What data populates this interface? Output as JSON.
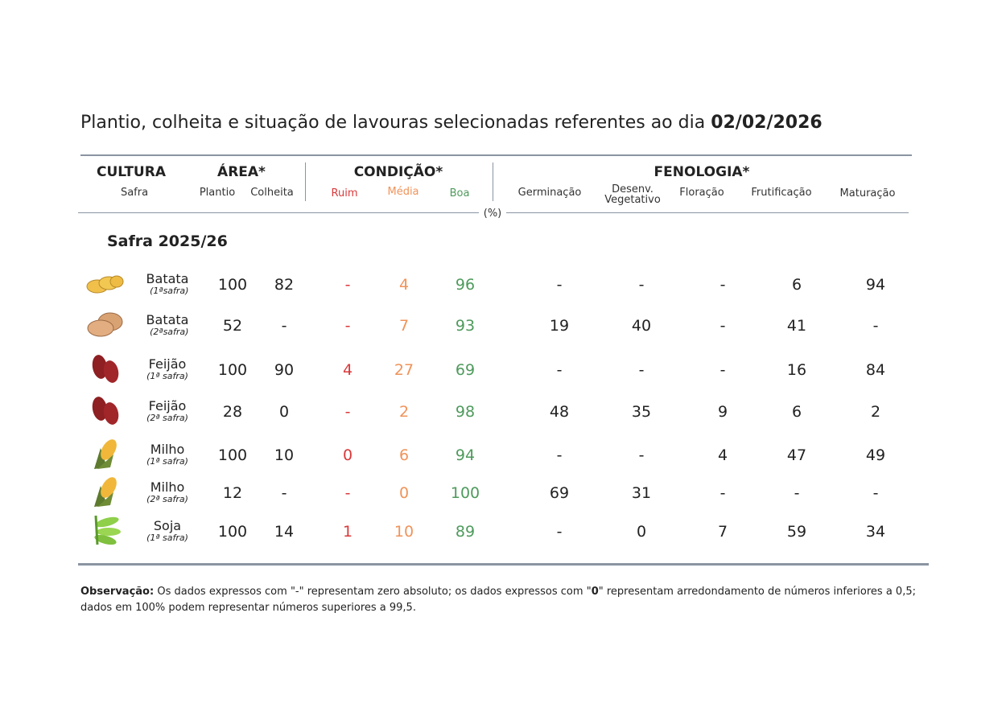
{
  "title": {
    "text": "Plantio, colheita e situação de lavouras selecionadas referentes ao dia ",
    "date": "02/02/2026"
  },
  "header": {
    "cultura": "CULTURA",
    "safra": "Safra",
    "area": "ÁREA*",
    "plantio": "Plantio",
    "colheita": "Colheita",
    "condicao": "CONDIÇÃO*",
    "ruim": "Ruim",
    "media": "Média",
    "boa": "Boa",
    "fenologia": "FENOLOGIA*",
    "germinacao": "Germinação",
    "desenv1": "Desenv.",
    "desenv2": "Vegetativo",
    "floracao": "Floração",
    "frutificacao": "Frutificação",
    "maturacao": "Maturação",
    "unit": "(%)"
  },
  "section": "Safra 2025/26",
  "colors": {
    "ruim": "#d9393b",
    "media": "#f0935a",
    "boa": "#4e9a5c"
  },
  "rows": [
    {
      "crop": "Batata",
      "safra": "(1ªsafra)",
      "icon": "potato-yellow-icon",
      "plantio": "100",
      "colheita": "82",
      "ruim": "-",
      "media": "4",
      "boa": "96",
      "germinacao": "-",
      "desenv": "-",
      "floracao": "-",
      "frutificacao": "6",
      "maturacao": "94"
    },
    {
      "crop": "Batata",
      "safra": "(2ªsafra)",
      "icon": "potato-icon",
      "plantio": "52",
      "colheita": "-",
      "ruim": "-",
      "media": "7",
      "boa": "93",
      "germinacao": "19",
      "desenv": "40",
      "floracao": "-",
      "frutificacao": "41",
      "maturacao": "-"
    },
    {
      "crop": "Feijão",
      "safra": "(1ª safra)",
      "icon": "bean-icon",
      "plantio": "100",
      "colheita": "90",
      "ruim": "4",
      "media": "27",
      "boa": "69",
      "germinacao": "-",
      "desenv": "-",
      "floracao": "-",
      "frutificacao": "16",
      "maturacao": "84"
    },
    {
      "crop": "Feijão",
      "safra": "(2ª safra)",
      "icon": "bean-icon",
      "plantio": "28",
      "colheita": "0",
      "ruim": "-",
      "media": "2",
      "boa": "98",
      "germinacao": "48",
      "desenv": "35",
      "floracao": "9",
      "frutificacao": "6",
      "maturacao": "2"
    },
    {
      "crop": "Milho",
      "safra": "(1ª safra)",
      "icon": "corn-icon",
      "plantio": "100",
      "colheita": "10",
      "ruim": "0",
      "media": "6",
      "boa": "94",
      "germinacao": "-",
      "desenv": "-",
      "floracao": "4",
      "frutificacao": "47",
      "maturacao": "49"
    },
    {
      "crop": "Milho",
      "safra": "(2ª safra)",
      "icon": "corn-icon",
      "plantio": "12",
      "colheita": "-",
      "ruim": "-",
      "media": "0",
      "boa": "100",
      "germinacao": "69",
      "desenv": "31",
      "floracao": "-",
      "frutificacao": "-",
      "maturacao": "-"
    },
    {
      "crop": "Soja",
      "safra": "(1ª safra)",
      "icon": "soybean-icon",
      "plantio": "100",
      "colheita": "14",
      "ruim": "1",
      "media": "10",
      "boa": "89",
      "germinacao": "-",
      "desenv": "0",
      "floracao": "7",
      "frutificacao": "59",
      "maturacao": "34"
    }
  ],
  "note": {
    "label": "Observação:",
    "text1": " Os dados expressos com \"-\" representam zero absoluto; os dados expressos com \"",
    "zero": "0",
    "text2": "\" representam arredondamento de números inferiores a 0,5; dados em 100% podem representar números superiores a 99,5."
  }
}
